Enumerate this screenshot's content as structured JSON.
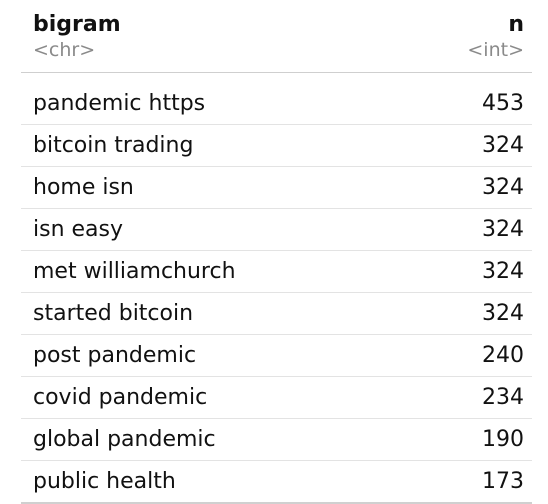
{
  "table": {
    "columns": [
      {
        "name": "bigram",
        "type": "<chr>"
      },
      {
        "name": "n",
        "type": "<int>"
      }
    ],
    "rows": [
      {
        "bigram": "pandemic https",
        "n": "453"
      },
      {
        "bigram": "bitcoin trading",
        "n": "324"
      },
      {
        "bigram": "home isn",
        "n": "324"
      },
      {
        "bigram": "isn easy",
        "n": "324"
      },
      {
        "bigram": "met williamchurch",
        "n": "324"
      },
      {
        "bigram": "started bitcoin",
        "n": "324"
      },
      {
        "bigram": "post pandemic",
        "n": "240"
      },
      {
        "bigram": "covid pandemic",
        "n": "234"
      },
      {
        "bigram": "global pandemic",
        "n": "190"
      },
      {
        "bigram": "public health",
        "n": "173"
      }
    ]
  }
}
